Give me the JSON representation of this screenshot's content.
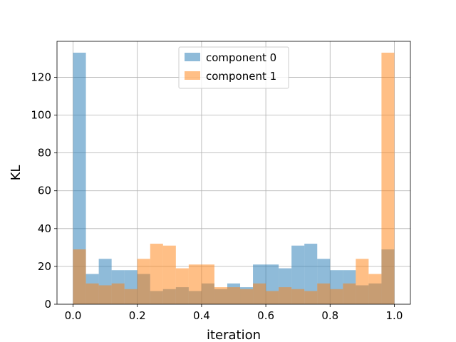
{
  "chart_data": {
    "type": "bar",
    "title": "",
    "xlabel": "iteration",
    "ylabel": "KL",
    "xlim": [
      -0.05,
      1.05
    ],
    "ylim": [
      0,
      139
    ],
    "grid": true,
    "legend_position": "top-center",
    "bin_edges": [
      0.0,
      0.04,
      0.08,
      0.12,
      0.16,
      0.2,
      0.24,
      0.28,
      0.32,
      0.36,
      0.4,
      0.44,
      0.48,
      0.52,
      0.56,
      0.6,
      0.64,
      0.68,
      0.72,
      0.76,
      0.8,
      0.84,
      0.88,
      0.92,
      0.96,
      1.0
    ],
    "x_ticks": [
      0.0,
      0.2,
      0.4,
      0.6,
      0.8,
      1.0
    ],
    "x_tick_labels": [
      "0.0",
      "0.2",
      "0.4",
      "0.6",
      "0.8",
      "1.0"
    ],
    "y_ticks": [
      0,
      20,
      40,
      60,
      80,
      100,
      120
    ],
    "y_tick_labels": [
      "0",
      "20",
      "40",
      "60",
      "80",
      "100",
      "120"
    ],
    "series": [
      {
        "name": "component 0",
        "color": "#1f77b4",
        "values": [
          133,
          16,
          24,
          18,
          18,
          16,
          7,
          8,
          9,
          7,
          11,
          8,
          11,
          9,
          21,
          21,
          19,
          31,
          32,
          24,
          18,
          18,
          10,
          11,
          29
        ]
      },
      {
        "name": "component 1",
        "color": "#ff7f0e",
        "values": [
          29,
          11,
          10,
          11,
          8,
          24,
          32,
          31,
          19,
          21,
          21,
          9,
          9,
          8,
          11,
          7,
          9,
          8,
          7,
          11,
          8,
          11,
          24,
          16,
          133
        ]
      }
    ]
  }
}
